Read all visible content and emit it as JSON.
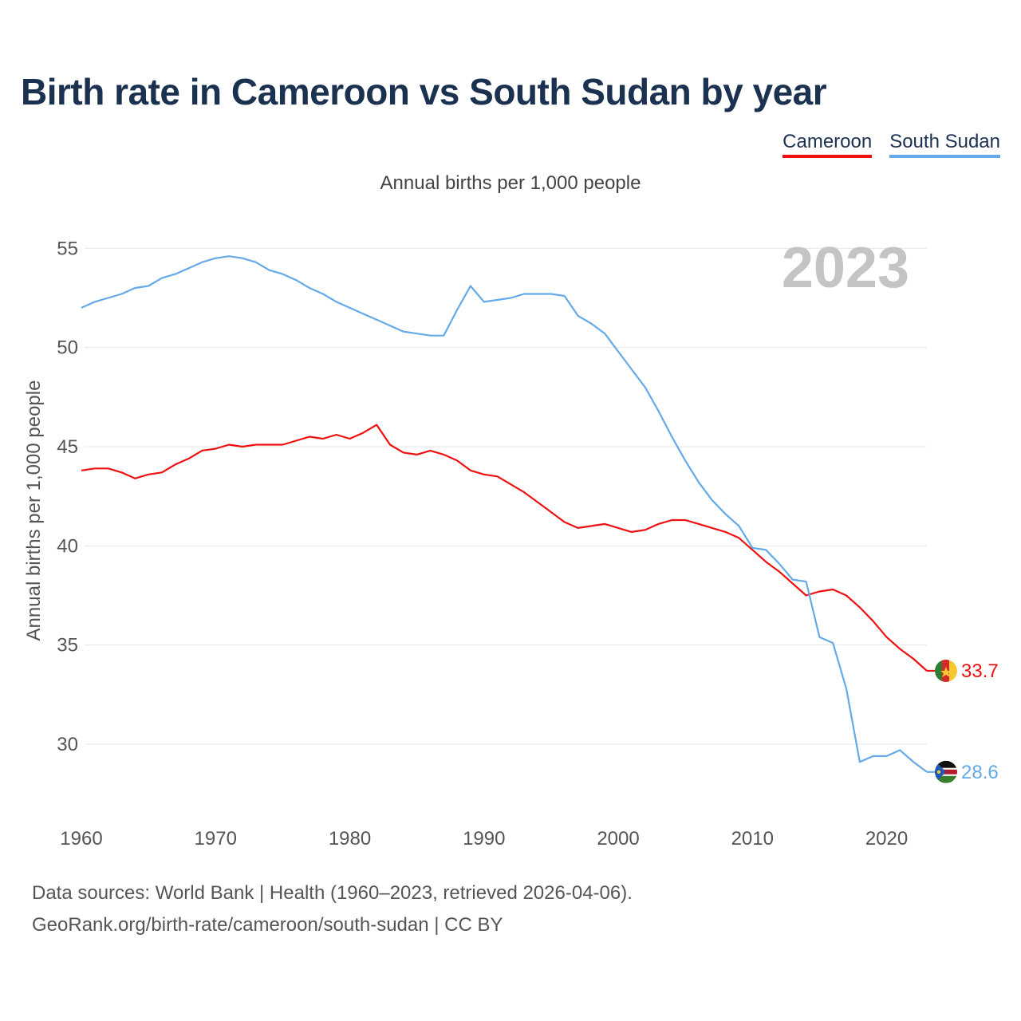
{
  "title": "Birth rate in Cameroon vs South Sudan by year",
  "subtitle": "Annual births per 1,000 people",
  "year_badge": "2023",
  "legend": [
    {
      "label": "Cameroon",
      "color": "#ee1111"
    },
    {
      "label": "South Sudan",
      "color": "#64aae8"
    }
  ],
  "source_line1": "Data sources: World Bank | Health (1960–2023, retrieved 2026-04-06).",
  "source_line2": "GeoRank.org/birth-rate/cameroon/south-sudan | CC BY",
  "chart_data": {
    "type": "line",
    "title": "Birth rate in Cameroon vs South Sudan by year",
    "xlabel": "",
    "ylabel": "Annual births per 1,000 people",
    "xlim": [
      1960,
      2023
    ],
    "ylim": [
      26.5,
      56.5
    ],
    "x_ticks": [
      1960,
      1970,
      1980,
      1990,
      2000,
      2010,
      2020
    ],
    "y_ticks": [
      30,
      35,
      40,
      45,
      50,
      55
    ],
    "grid": true,
    "x": [
      1960,
      1961,
      1962,
      1963,
      1964,
      1965,
      1966,
      1967,
      1968,
      1969,
      1970,
      1971,
      1972,
      1973,
      1974,
      1975,
      1976,
      1977,
      1978,
      1979,
      1980,
      1981,
      1982,
      1983,
      1984,
      1985,
      1986,
      1987,
      1988,
      1989,
      1990,
      1991,
      1992,
      1993,
      1994,
      1995,
      1996,
      1997,
      1998,
      1999,
      2000,
      2001,
      2002,
      2003,
      2004,
      2005,
      2006,
      2007,
      2008,
      2009,
      2010,
      2011,
      2012,
      2013,
      2014,
      2015,
      2016,
      2017,
      2018,
      2019,
      2020,
      2021,
      2022,
      2023
    ],
    "series": [
      {
        "name": "Cameroon",
        "color": "#ee1111",
        "end_label": "33.7",
        "values": [
          43.8,
          43.9,
          43.9,
          43.7,
          43.4,
          43.6,
          43.7,
          44.1,
          44.4,
          44.8,
          44.9,
          45.1,
          45.0,
          45.1,
          45.1,
          45.1,
          45.3,
          45.5,
          45.4,
          45.6,
          45.4,
          45.7,
          46.1,
          45.1,
          44.7,
          44.6,
          44.8,
          44.6,
          44.3,
          43.8,
          43.6,
          43.5,
          43.1,
          42.7,
          42.2,
          41.7,
          41.2,
          40.9,
          41.0,
          41.1,
          40.9,
          40.7,
          40.8,
          41.1,
          41.3,
          41.3,
          41.1,
          40.9,
          40.7,
          40.4,
          39.8,
          39.2,
          38.7,
          38.1,
          37.5,
          37.7,
          37.8,
          37.5,
          36.9,
          36.2,
          35.4,
          34.8,
          34.3,
          33.7
        ]
      },
      {
        "name": "South Sudan",
        "color": "#64aae8",
        "end_label": "28.6",
        "values": [
          52.0,
          52.3,
          52.5,
          52.7,
          53.0,
          53.1,
          53.5,
          53.7,
          54.0,
          54.3,
          54.5,
          54.6,
          54.5,
          54.3,
          53.9,
          53.7,
          53.4,
          53.0,
          52.7,
          52.3,
          52.0,
          51.7,
          51.4,
          51.1,
          50.8,
          50.7,
          50.6,
          50.6,
          51.9,
          53.1,
          52.3,
          52.4,
          52.5,
          52.7,
          52.7,
          52.7,
          52.6,
          51.6,
          51.2,
          50.7,
          49.8,
          48.9,
          48.0,
          46.8,
          45.5,
          44.3,
          43.2,
          42.3,
          41.6,
          41.0,
          39.9,
          39.8,
          39.1,
          38.3,
          38.2,
          35.4,
          35.1,
          32.8,
          29.1,
          29.4,
          29.4,
          29.7,
          29.1,
          28.6
        ]
      }
    ]
  }
}
